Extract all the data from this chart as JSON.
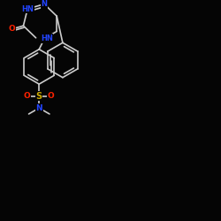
{
  "background_color": "#050505",
  "bond_color": "#cccccc",
  "atom_colors": {
    "O": "#ff2200",
    "N": "#2244ff",
    "S": "#ccaa00",
    "C": "#cccccc"
  },
  "figsize": [
    2.5,
    2.5
  ],
  "dpi": 100,
  "xlim": [
    0,
    100
  ],
  "ylim": [
    0,
    100
  ],
  "lw": 1.2,
  "r": 8.0
}
